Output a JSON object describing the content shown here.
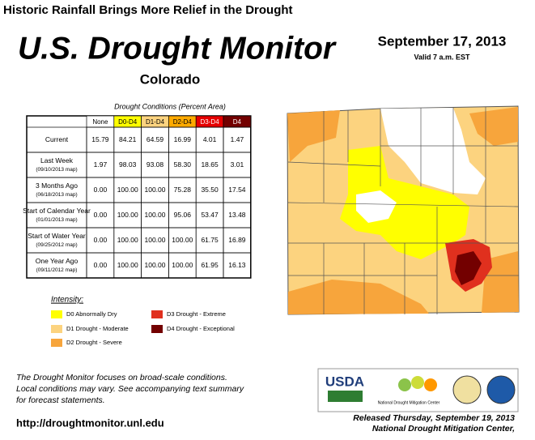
{
  "headline": "Historic Rainfall Brings More Relief in the Drought",
  "title": "U.S. Drought Monitor",
  "region": "Colorado",
  "date": "September 17, 2013",
  "valid": "Valid 7 a.m. EST",
  "table": {
    "caption": "Drought Conditions (Percent Area)",
    "columns": [
      {
        "label": "None",
        "color": "#ffffff",
        "text_color": "#000000"
      },
      {
        "label": "D0-D4",
        "color": "#ffff00",
        "text_color": "#000000"
      },
      {
        "label": "D1-D4",
        "color": "#fcd37f",
        "text_color": "#000000"
      },
      {
        "label": "D2-D4",
        "color": "#ffaa00",
        "text_color": "#000000"
      },
      {
        "label": "D3-D4",
        "color": "#e60000",
        "text_color": "#ffffff"
      },
      {
        "label": "D4",
        "color": "#730000",
        "text_color": "#ffffff"
      }
    ],
    "rows": [
      {
        "label": "Current",
        "values": [
          "15.79",
          "84.21",
          "64.59",
          "16.99",
          "4.01",
          "1.47"
        ]
      },
      {
        "label": "Last Week",
        "sublabel": "(09/10/2013 map)",
        "values": [
          "1.97",
          "98.03",
          "93.08",
          "58.30",
          "18.65",
          "3.01"
        ]
      },
      {
        "label": "3 Months Ago",
        "sublabel": "(06/18/2013 map)",
        "values": [
          "0.00",
          "100.00",
          "100.00",
          "75.28",
          "35.50",
          "17.54"
        ]
      },
      {
        "label": "Start of Calendar Year",
        "sublabel": "(01/01/2013 map)",
        "values": [
          "0.00",
          "100.00",
          "100.00",
          "95.06",
          "53.47",
          "13.48"
        ]
      },
      {
        "label": "Start of Water Year",
        "sublabel": "(09/25/2012 map)",
        "values": [
          "0.00",
          "100.00",
          "100.00",
          "100.00",
          "61.75",
          "16.89"
        ]
      },
      {
        "label": "One Year Ago",
        "sublabel": "(09/11/2012 map)",
        "values": [
          "0.00",
          "100.00",
          "100.00",
          "100.00",
          "61.95",
          "16.13"
        ]
      }
    ]
  },
  "legend": {
    "title": "Intensity:",
    "items": [
      {
        "label": "D0 Abnormally Dry",
        "color": "#ffff00"
      },
      {
        "label": "D1 Drought - Moderate",
        "color": "#fcd37f"
      },
      {
        "label": "D2 Drought - Severe",
        "color": "#f7a53c"
      },
      {
        "label": "D3 Drought - Extreme",
        "color": "#e0301e"
      },
      {
        "label": "D4 Drought - Exceptional",
        "color": "#730000"
      }
    ]
  },
  "footnote": [
    "The Drought Monitor focuses on broad-scale conditions.",
    "Local conditions may vary. See accompanying text summary",
    "for forecast statements."
  ],
  "url": "http://droughtmonitor.unl.edu",
  "logos": [
    "USDA",
    "National Drought Mitigation Center"
  ],
  "released": [
    "Released Thursday, September 19, 2013",
    "National Drought Mitigation Center,"
  ]
}
